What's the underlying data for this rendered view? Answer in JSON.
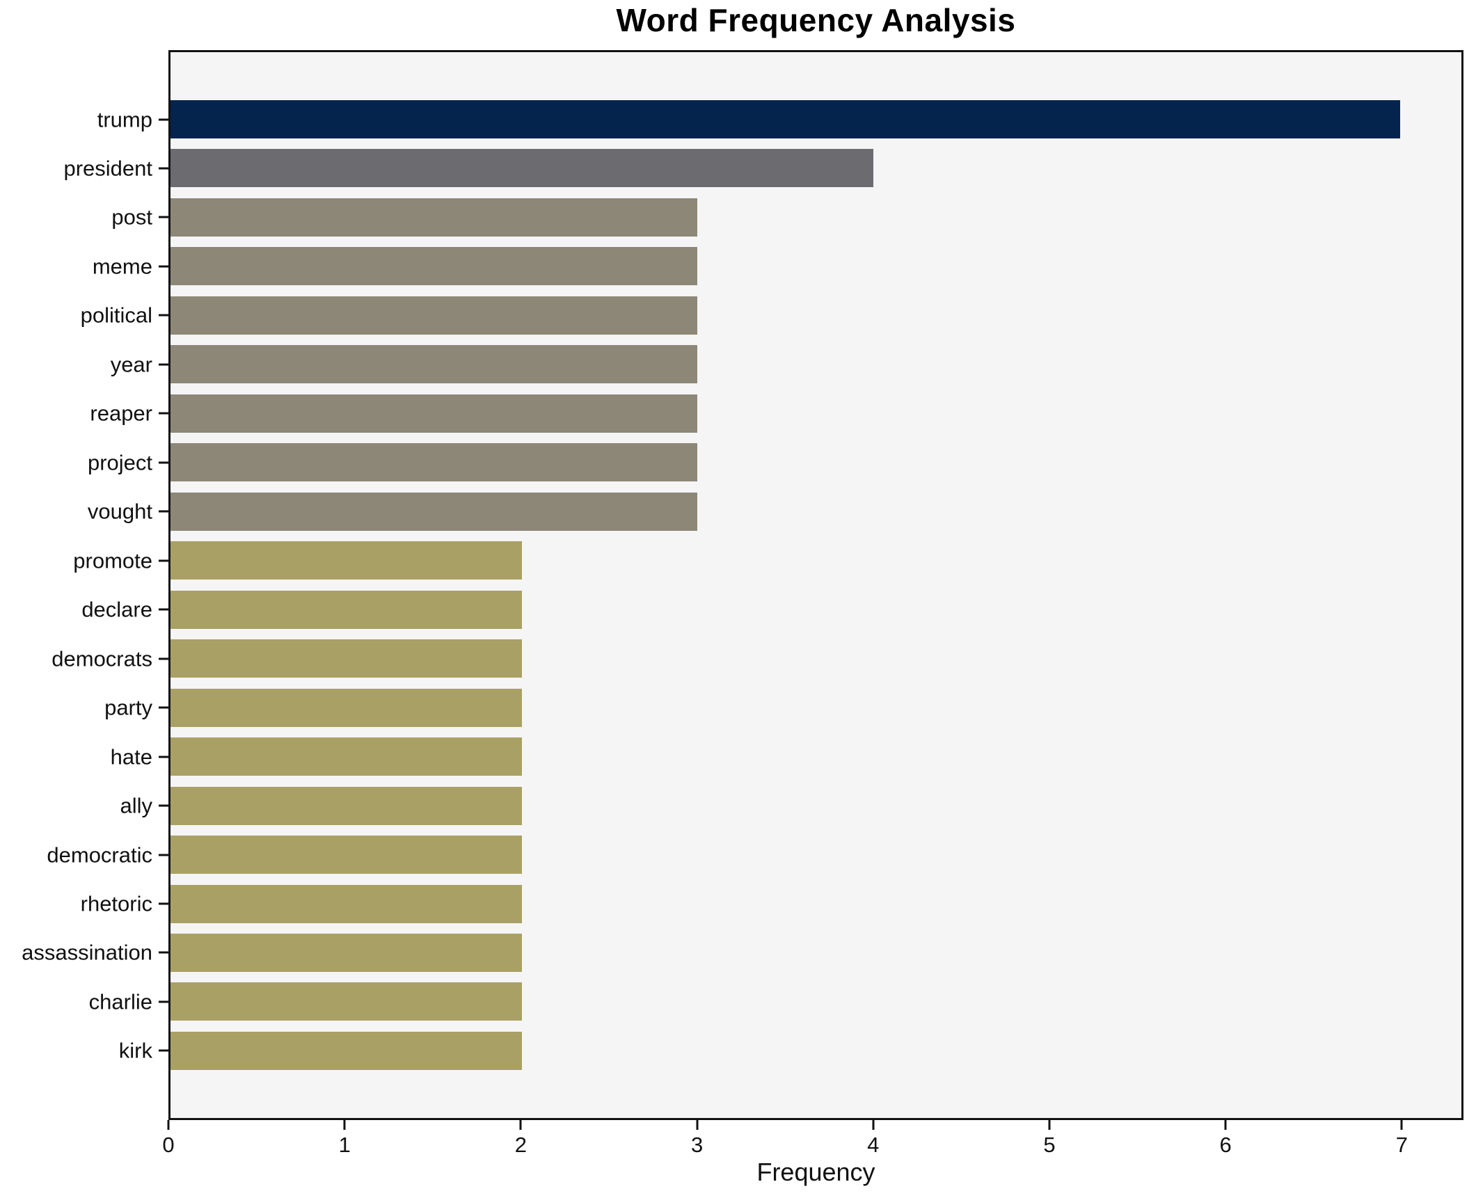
{
  "chart_data": {
    "type": "bar",
    "orientation": "horizontal",
    "title": "Word Frequency Analysis",
    "xlabel": "Frequency",
    "ylabel": "",
    "categories": [
      "trump",
      "president",
      "post",
      "meme",
      "political",
      "year",
      "reaper",
      "project",
      "vought",
      "promote",
      "declare",
      "democrats",
      "party",
      "hate",
      "ally",
      "democratic",
      "rhetoric",
      "assassination",
      "charlie",
      "kirk"
    ],
    "values": [
      7,
      4,
      3,
      3,
      3,
      3,
      3,
      3,
      3,
      2,
      2,
      2,
      2,
      2,
      2,
      2,
      2,
      2,
      2,
      2
    ],
    "bar_colors": [
      "#04234d",
      "#6b6b70",
      "#8d8777",
      "#8d8777",
      "#8d8777",
      "#8d8777",
      "#8d8777",
      "#8d8777",
      "#8d8777",
      "#a9a065",
      "#a9a065",
      "#a9a065",
      "#a9a065",
      "#a9a065",
      "#a9a065",
      "#a9a065",
      "#a9a065",
      "#a9a065",
      "#a9a065",
      "#a9a065"
    ],
    "x_ticks": [
      0,
      1,
      2,
      3,
      4,
      5,
      6,
      7
    ],
    "xlim": [
      0,
      7.35
    ],
    "grid": false,
    "legend": null,
    "plot_background": "#f5f5f6",
    "figure_background": "#ffffff",
    "spine_color": "#121212"
  }
}
